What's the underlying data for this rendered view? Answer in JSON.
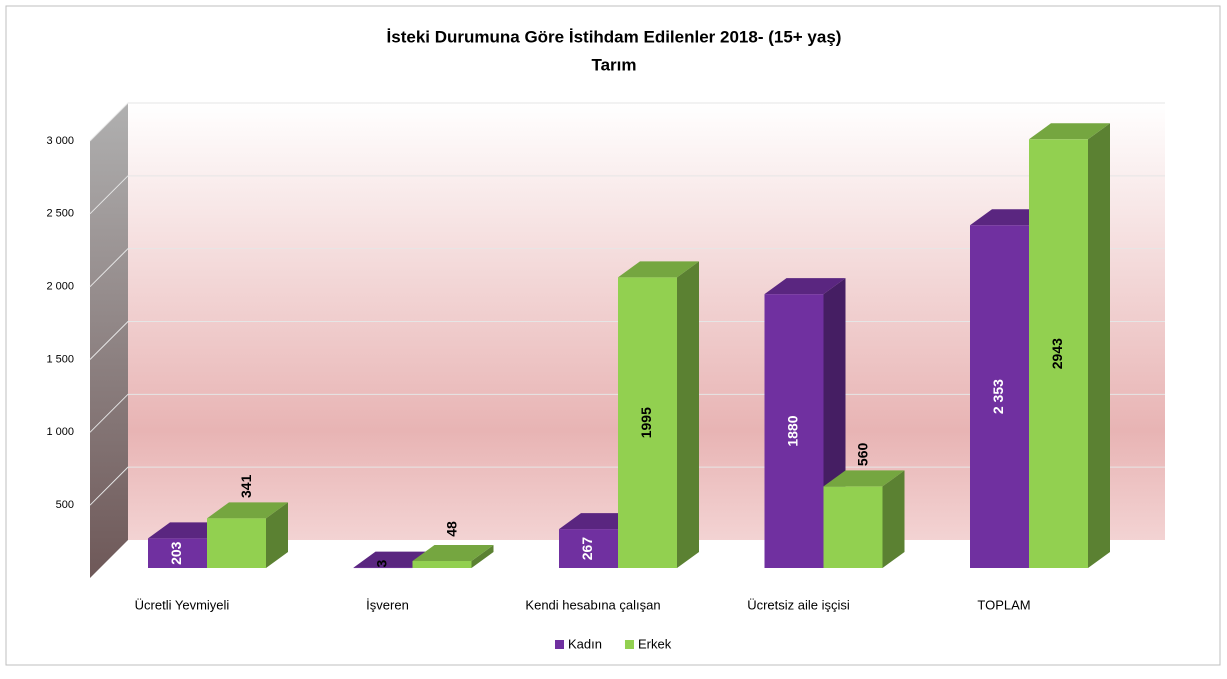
{
  "chart_data": {
    "type": "bar3d",
    "title": "İsteki Durumuna Göre İstihdam Edilenler 2018- (15+ yaş)",
    "subtitle": "Tarım",
    "categories": [
      "Ücretli Yevmiyeli",
      "İşveren",
      "Kendi hesabına çalışan",
      "Ücretsiz aile işçisi",
      "TOPLAM"
    ],
    "series": [
      {
        "name": "Kadın",
        "color": "#7030a0",
        "values": [
          203,
          3,
          267,
          1880,
          2353
        ],
        "value_labels": [
          "203",
          "3",
          "267",
          "1880",
          "2 353"
        ]
      },
      {
        "name": "Erkek",
        "color": "#92d050",
        "values": [
          341,
          48,
          1995,
          560,
          2943
        ]
      }
    ],
    "ylim": [
      0,
      3000
    ],
    "yticks": [
      500,
      {
        "value": 1000,
        "label": "1 000"
      },
      {
        "value": 1500,
        "label": "1 500"
      },
      {
        "value": 2000,
        "label": "2 000"
      },
      {
        "value": 2500,
        "label": "2 500"
      },
      {
        "value": 3000,
        "label": "3 000"
      }
    ],
    "grid": true,
    "legend": "bottom"
  }
}
